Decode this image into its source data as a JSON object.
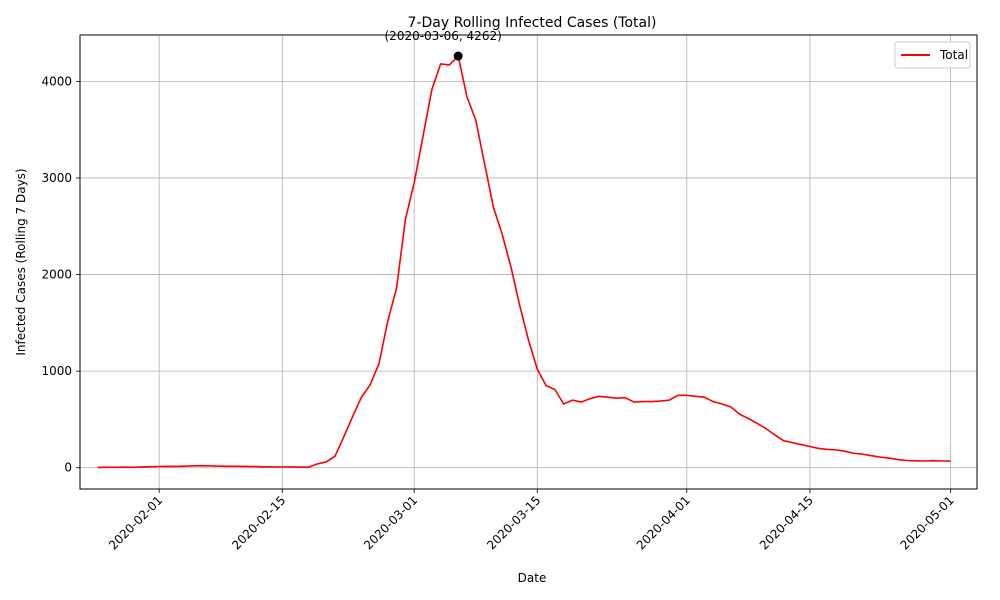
{
  "chart_data": {
    "type": "line",
    "title": "7-Day Rolling Infected Cases (Total)",
    "xlabel": "Date",
    "ylabel": "Infected Cases (Rolling 7 Days)",
    "xlim": [
      "2020-01-23",
      "2020-05-04"
    ],
    "ylim": [
      -220,
      4480
    ],
    "xticks": [
      "2020-02-01",
      "2020-02-15",
      "2020-03-01",
      "2020-03-15",
      "2020-04-01",
      "2020-04-15",
      "2020-05-01"
    ],
    "yticks": [
      0,
      1000,
      2000,
      3000,
      4000
    ],
    "grid": true,
    "legend": {
      "location": "upper right",
      "entries": [
        "Total"
      ]
    },
    "colors": {
      "Total": "#ff0000",
      "annotation_marker": "#000000",
      "grid": "#b0b0b0"
    },
    "series": [
      {
        "name": "Total",
        "x": [
          "2020-01-25",
          "2020-01-26",
          "2020-01-27",
          "2020-01-28",
          "2020-01-29",
          "2020-01-30",
          "2020-01-31",
          "2020-02-01",
          "2020-02-02",
          "2020-02-03",
          "2020-02-04",
          "2020-02-05",
          "2020-02-06",
          "2020-02-07",
          "2020-02-08",
          "2020-02-09",
          "2020-02-10",
          "2020-02-11",
          "2020-02-12",
          "2020-02-13",
          "2020-02-14",
          "2020-02-15",
          "2020-02-16",
          "2020-02-17",
          "2020-02-18",
          "2020-02-19",
          "2020-02-20",
          "2020-02-21",
          "2020-02-22",
          "2020-02-23",
          "2020-02-24",
          "2020-02-25",
          "2020-02-26",
          "2020-02-27",
          "2020-02-28",
          "2020-02-29",
          "2020-03-01",
          "2020-03-02",
          "2020-03-03",
          "2020-03-04",
          "2020-03-05",
          "2020-03-06",
          "2020-03-07",
          "2020-03-08",
          "2020-03-09",
          "2020-03-10",
          "2020-03-11",
          "2020-03-12",
          "2020-03-13",
          "2020-03-14",
          "2020-03-15",
          "2020-03-16",
          "2020-03-17",
          "2020-03-18",
          "2020-03-19",
          "2020-03-20",
          "2020-03-21",
          "2020-03-22",
          "2020-03-23",
          "2020-03-24",
          "2020-03-25",
          "2020-03-26",
          "2020-03-27",
          "2020-03-28",
          "2020-03-29",
          "2020-03-30",
          "2020-03-31",
          "2020-04-01",
          "2020-04-02",
          "2020-04-03",
          "2020-04-04",
          "2020-04-05",
          "2020-04-06",
          "2020-04-07",
          "2020-04-08",
          "2020-04-09",
          "2020-04-10",
          "2020-04-11",
          "2020-04-12",
          "2020-04-13",
          "2020-04-14",
          "2020-04-15",
          "2020-04-16",
          "2020-04-17",
          "2020-04-18",
          "2020-04-19",
          "2020-04-20",
          "2020-04-21",
          "2020-04-22",
          "2020-04-23",
          "2020-04-24",
          "2020-04-25",
          "2020-04-26",
          "2020-04-27",
          "2020-04-28",
          "2020-04-29",
          "2020-04-30",
          "2020-05-01"
        ],
        "y": [
          3,
          4,
          5,
          6,
          5,
          8,
          11,
          13,
          15,
          14,
          16,
          20,
          21,
          19,
          16,
          15,
          15,
          14,
          12,
          10,
          9,
          9,
          8,
          7,
          6,
          40,
          60,
          120,
          320,
          530,
          730,
          860,
          1080,
          1520,
          1860,
          2570,
          2950,
          3430,
          3910,
          4180,
          4170,
          4262,
          3840,
          3600,
          3150,
          2700,
          2420,
          2080,
          1680,
          1320,
          1020,
          850,
          810,
          660,
          700,
          680,
          715,
          740,
          730,
          720,
          725,
          680,
          685,
          685,
          690,
          700,
          750,
          750,
          740,
          730,
          685,
          660,
          630,
          555,
          510,
          460,
          405,
          340,
          280,
          260,
          240,
          220,
          200,
          190,
          185,
          170,
          150,
          140,
          125,
          110,
          100,
          85,
          75,
          72,
          70,
          73,
          70,
          70
        ]
      }
    ],
    "annotations": [
      {
        "text": "(2020-03-06, 4262)",
        "x": "2020-03-06",
        "y": 4262
      }
    ]
  }
}
